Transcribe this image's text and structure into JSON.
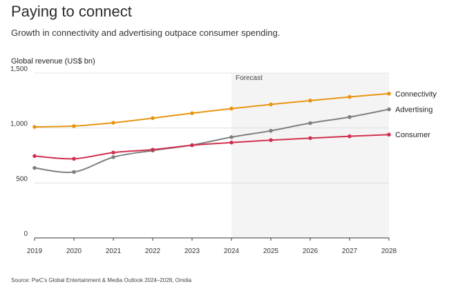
{
  "header": {
    "title": "Paying to connect",
    "subtitle": "Growth in connectivity and advertising outpace consumer spending."
  },
  "footer": {
    "source": "Source: PwC's Global Entertainment & Media Outlook 2024–2028, Omdia"
  },
  "chart_data": {
    "type": "line",
    "title": "Paying to connect",
    "ylabel": "Global revenue (US$ bn)",
    "xlabel": "",
    "categories": [
      "2019",
      "2020",
      "2021",
      "2022",
      "2023",
      "2024",
      "2025",
      "2026",
      "2027",
      "2028"
    ],
    "ylim": [
      0,
      1500
    ],
    "yticks": [
      0,
      500,
      1000,
      1500
    ],
    "ytick_labels": [
      "0",
      "500",
      "1,000",
      "1,500"
    ],
    "forecast": {
      "label": "Forecast",
      "start": "2024",
      "end": "2028"
    },
    "series": [
      {
        "name": "Connectivity",
        "color": "#e8950e",
        "values": [
          1010,
          1018,
          1048,
          1090,
          1135,
          1177,
          1215,
          1250,
          1283,
          1313
        ]
      },
      {
        "name": "Advertising",
        "color": "#7f7f7f",
        "values": [
          637,
          600,
          735,
          795,
          845,
          917,
          975,
          1045,
          1100,
          1170
        ]
      },
      {
        "name": "Consumer",
        "color": "#d0304f",
        "values": [
          745,
          720,
          777,
          803,
          843,
          868,
          890,
          908,
          925,
          940
        ]
      }
    ]
  }
}
